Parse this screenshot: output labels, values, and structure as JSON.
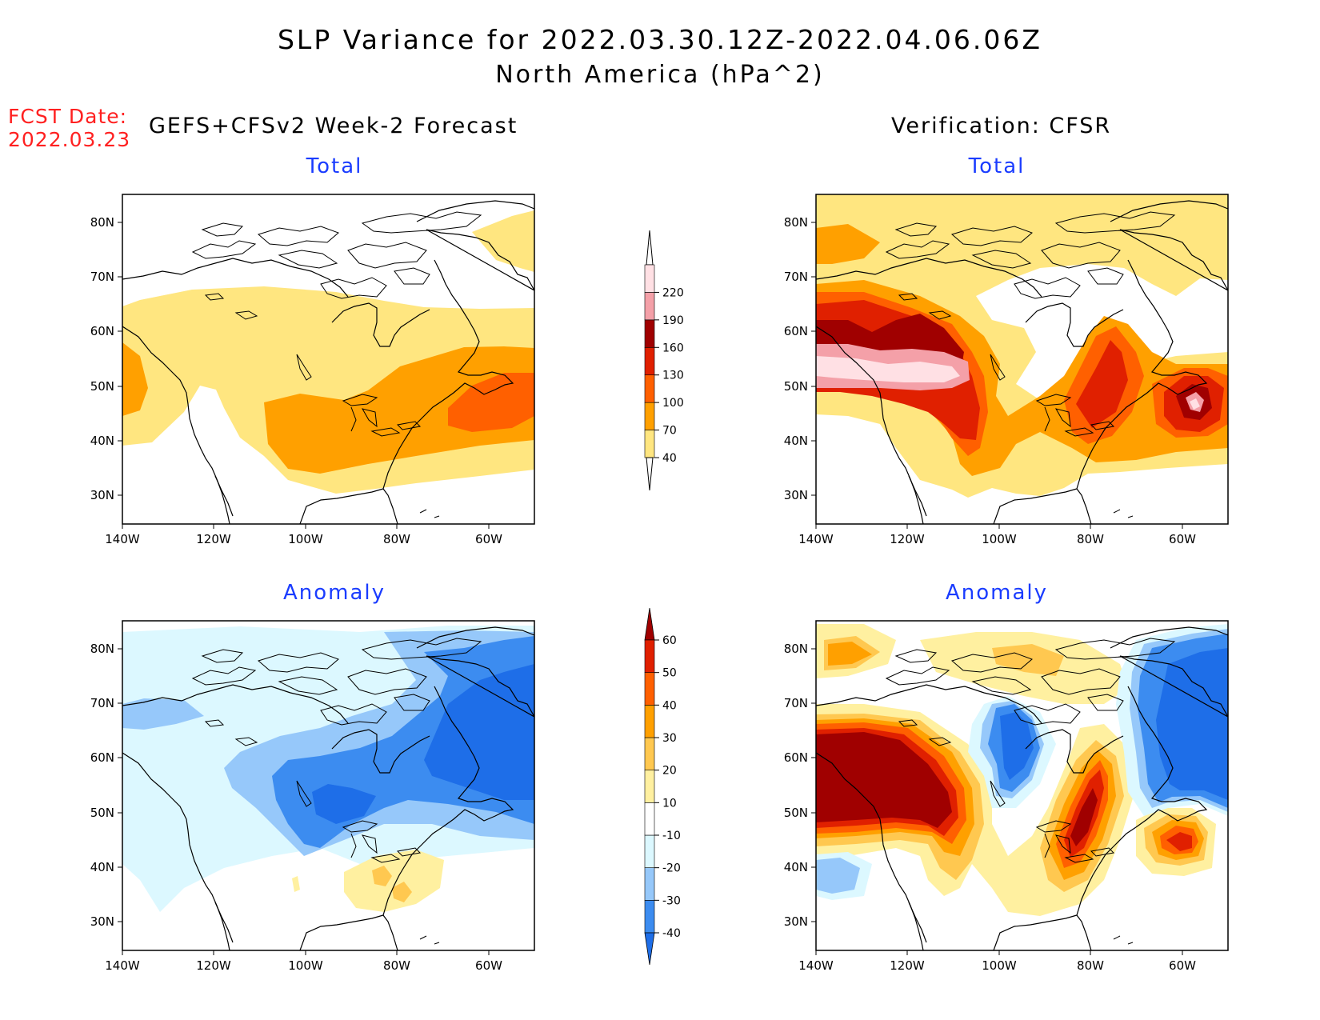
{
  "header": {
    "title_line1": "SLP Variance for 2022.03.30.12Z-2022.04.06.06Z",
    "title_line2": "North America (hPa^2)",
    "fcst_label": "FCST Date:",
    "fcst_date": "2022.03.23",
    "left_column": "GEFS+CFSv2 Week-2 Forecast",
    "right_column": "Verification: CFSR"
  },
  "panels": {
    "tl_title": "Total",
    "tr_title": "Total",
    "bl_title": "Anomaly",
    "br_title": "Anomaly"
  },
  "axes": {
    "lat_labels": [
      "80N",
      "70N",
      "60N",
      "50N",
      "40N",
      "30N"
    ],
    "lon_labels": [
      "140W",
      "120W",
      "100W",
      "80W",
      "60W"
    ]
  },
  "colorbars": {
    "total": {
      "labels": [
        "40",
        "70",
        "100",
        "130",
        "160",
        "190",
        "220"
      ],
      "colors": [
        "#ffe680",
        "#ffa000",
        "#ff6000",
        "#e02000",
        "#a00000",
        "#f4a0a8",
        "#ffe0e4"
      ]
    },
    "anomaly": {
      "labels": [
        "-40",
        "-30",
        "-20",
        "-10",
        "10",
        "20",
        "30",
        "40",
        "50",
        "60"
      ],
      "colors": [
        "#1e6ee8",
        "#3c8cf0",
        "#96c8fa",
        "#dcf8ff",
        "#ffffff",
        "#fff0a0",
        "#ffc850",
        "#ffa000",
        "#ff6000",
        "#e02000",
        "#a00000"
      ]
    }
  }
}
